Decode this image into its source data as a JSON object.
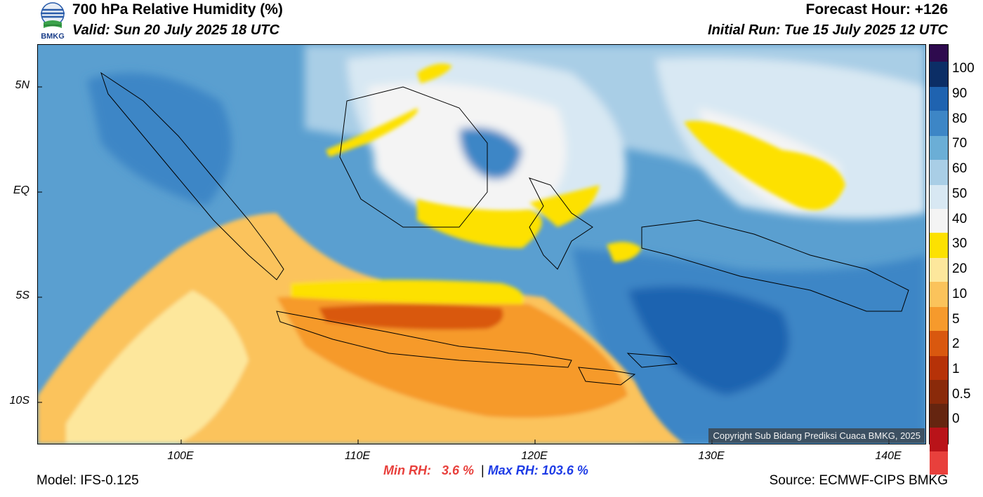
{
  "header": {
    "title": "700 hPa Relative Humidity (%)",
    "valid": "Valid: Sun 20 July 2025 18 UTC",
    "forecast_hour": "Forecast Hour: +126",
    "initial_run": "Initial Run: Tue 15 July 2025 12 UTC",
    "logo_text": "BMKG"
  },
  "map": {
    "copyright": "Copyright Sub Bidang Prediksi Cuaca BMKG, 2025",
    "lat_labels": [
      "5N",
      "EQ",
      "5S",
      "10S"
    ],
    "lon_labels": [
      "100E",
      "110E",
      "120E",
      "130E",
      "140E"
    ]
  },
  "colorbar": {
    "labels": [
      "100",
      "90",
      "80",
      "70",
      "60",
      "50",
      "40",
      "30",
      "20",
      "10",
      "5",
      "2",
      "1",
      "0.5",
      "0"
    ],
    "colors": [
      "#2e0a4e",
      "#0c2e66",
      "#1f63b0",
      "#3d86c6",
      "#6baed6",
      "#a9cee6",
      "#d8e8f3",
      "#f4f4f4",
      "#fde101",
      "#fde79c",
      "#fbc35b",
      "#f69a2c",
      "#d9580f",
      "#b63208",
      "#8a2a0a",
      "#652510",
      "#b91319",
      "#e8403c"
    ]
  },
  "stats": {
    "min_label": "Min RH:",
    "min_value": "3.6 %",
    "separator": "|",
    "max_label": "Max RH:",
    "max_value": "103.6 %"
  },
  "footer": {
    "model": "Model: IFS-0.125",
    "source": "Source: ECMWF-CIPS BMKG"
  }
}
